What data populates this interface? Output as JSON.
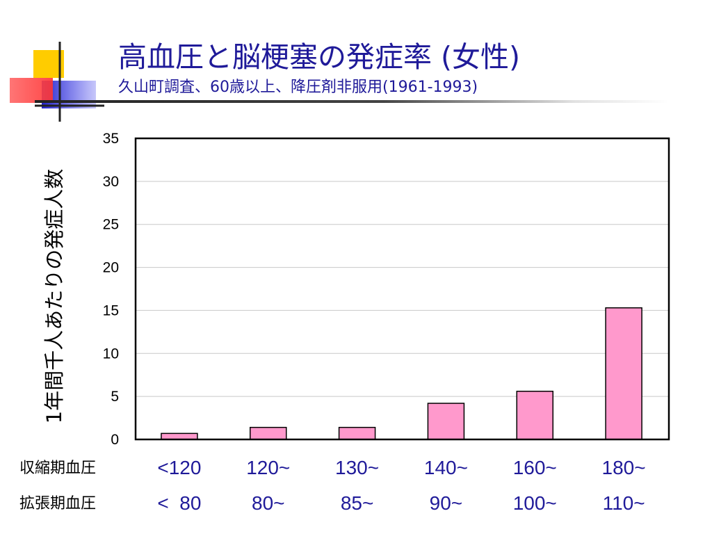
{
  "slide": {
    "title": "高血圧と脳梗塞の発症率 (女性)",
    "subtitle": "久山町調査、60歳以上、降圧剤非服用(1961-1993)"
  },
  "colors": {
    "title": "#1f1a99",
    "bar_fill": "#ff99cc",
    "bar_stroke": "#000000",
    "grid": "#c8c8c8"
  },
  "chart_data": {
    "type": "bar",
    "categories": [
      "<120 / < 80",
      "120~ / 80~",
      "130~ / 85~",
      "140~ / 90~",
      "160~ / 100~",
      "180~ / 110~"
    ],
    "values": [
      0.7,
      1.4,
      1.4,
      4.2,
      5.6,
      15.3
    ],
    "ylabel": "1年間千人あたりの発症人数",
    "xlabel": "",
    "ylim": [
      0,
      35
    ],
    "yticks": [
      0,
      5,
      10,
      15,
      20,
      25,
      30,
      35
    ],
    "grid": true,
    "legend": "none",
    "x_rows": [
      {
        "label": "収縮期血圧",
        "values": [
          "<120",
          "120~",
          "130~",
          "140~",
          "160~",
          "180~"
        ]
      },
      {
        "label": "拡張期血圧",
        "values": [
          "<  80",
          "80~",
          "85~",
          "90~",
          "100~",
          "110~"
        ]
      }
    ]
  }
}
